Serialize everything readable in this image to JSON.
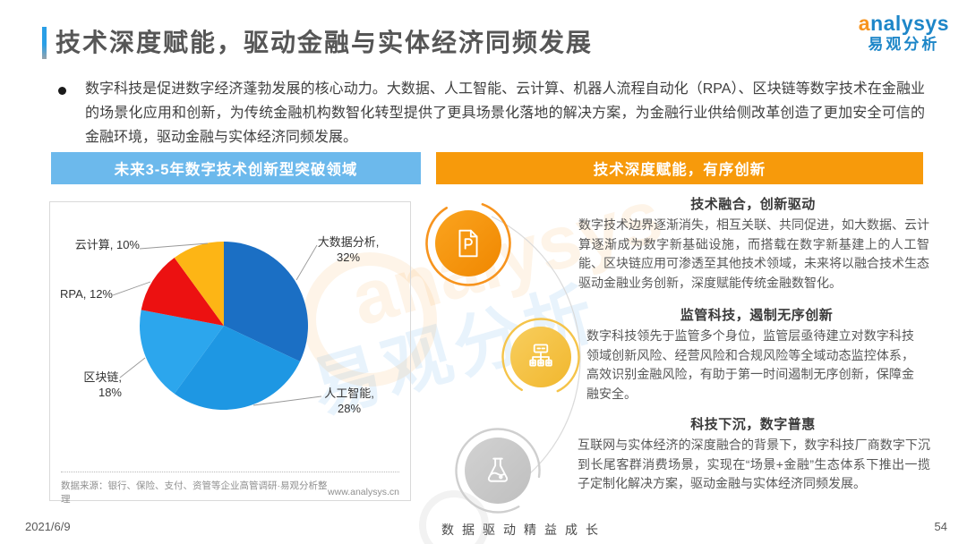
{
  "page": {
    "title": "技术深度赋能，驱动金融与实体经济同频发展",
    "intro": "数字科技是促进数字经济蓬勃发展的核心动力。大数据、人工智能、云计算、机器人流程自动化（RPA）、区块链等数字技术在金融业的场景化应用和创新，为传统金融机构数智化转型提供了更具场景化落地的解决方案，为金融行业供给侧改革创造了更加安全可信的金融环境，驱动金融与实体经济同频发展。",
    "footer": {
      "date": "2021/6/9",
      "slogan": "数据驱动精益成长",
      "page_number": "54"
    }
  },
  "logo": {
    "brand": "analysys",
    "brand_cn": "易观分析"
  },
  "colors": {
    "header_blue": "#6cb9ec",
    "header_orange": "#f79a0b",
    "brand_blue": "#1d86c8",
    "brand_orange": "#f7941e"
  },
  "left_panel": {
    "header": "未来3-5年数字技术创新型突破领域",
    "labels": {
      "big_data": {
        "name": "大数据分析,",
        "pct": "32%"
      },
      "ai": {
        "name": "人工智能,",
        "pct": "28%"
      },
      "blockchain": "区块链, 18%",
      "rpa": "RPA, 12%",
      "cloud": "云计算, 10%"
    },
    "source": "数据来源：银行、保险、支付、资管等企业高管调研·易观分析整理",
    "website": "www.analysys.cn"
  },
  "chart_data": {
    "type": "pie",
    "title": "未来3-5年数字技术创新型突破领域",
    "categories": [
      "大数据分析",
      "人工智能",
      "区块链",
      "RPA",
      "云计算"
    ],
    "values": [
      32,
      28,
      18,
      12,
      10
    ],
    "unit": "%",
    "colors": [
      "#1b6fc4",
      "#1e97e3",
      "#2ca6ed",
      "#ec1111",
      "#fdb515"
    ],
    "start_angle_deg": 0,
    "direction": "clockwise",
    "legend_position": "callout-labels"
  },
  "right_panel": {
    "header": "技术深度赋能，有序创新",
    "sections": [
      {
        "icon": "document-p-icon",
        "title": "技术融合，创新驱动",
        "body": "数字技术边界逐渐消失，相互关联、共同促进，如大数据、云计算逐渐成为数字新基础设施，而搭载在数字新基建上的人工智能、区块链应用可渗透至其他技术领域，未来将以融合技术生态驱动金融业务创新，深度赋能传统金融数智化。"
      },
      {
        "icon": "org-chart-icon",
        "title": "监管科技，遏制无序创新",
        "body": "数字科技领先于监管多个身位，监管层亟待建立对数字科技领域创新风险、经营风险和合规风险等全域动态监控体系，高效识别金融风险，有助于第一时间遏制无序创新，保障金融安全。"
      },
      {
        "icon": "flask-icon",
        "title": "科技下沉，数字普惠",
        "body": "互联网与实体经济的深度融合的背景下，数字科技厂商数字下沉到长尾客群消费场景，实现在“场景+金融”生态体系下推出一揽子定制化解决方案，驱动金融与实体经济同频发展。"
      }
    ]
  },
  "watermark": {
    "text_en": "analysys",
    "text_cn": "易观分析"
  }
}
